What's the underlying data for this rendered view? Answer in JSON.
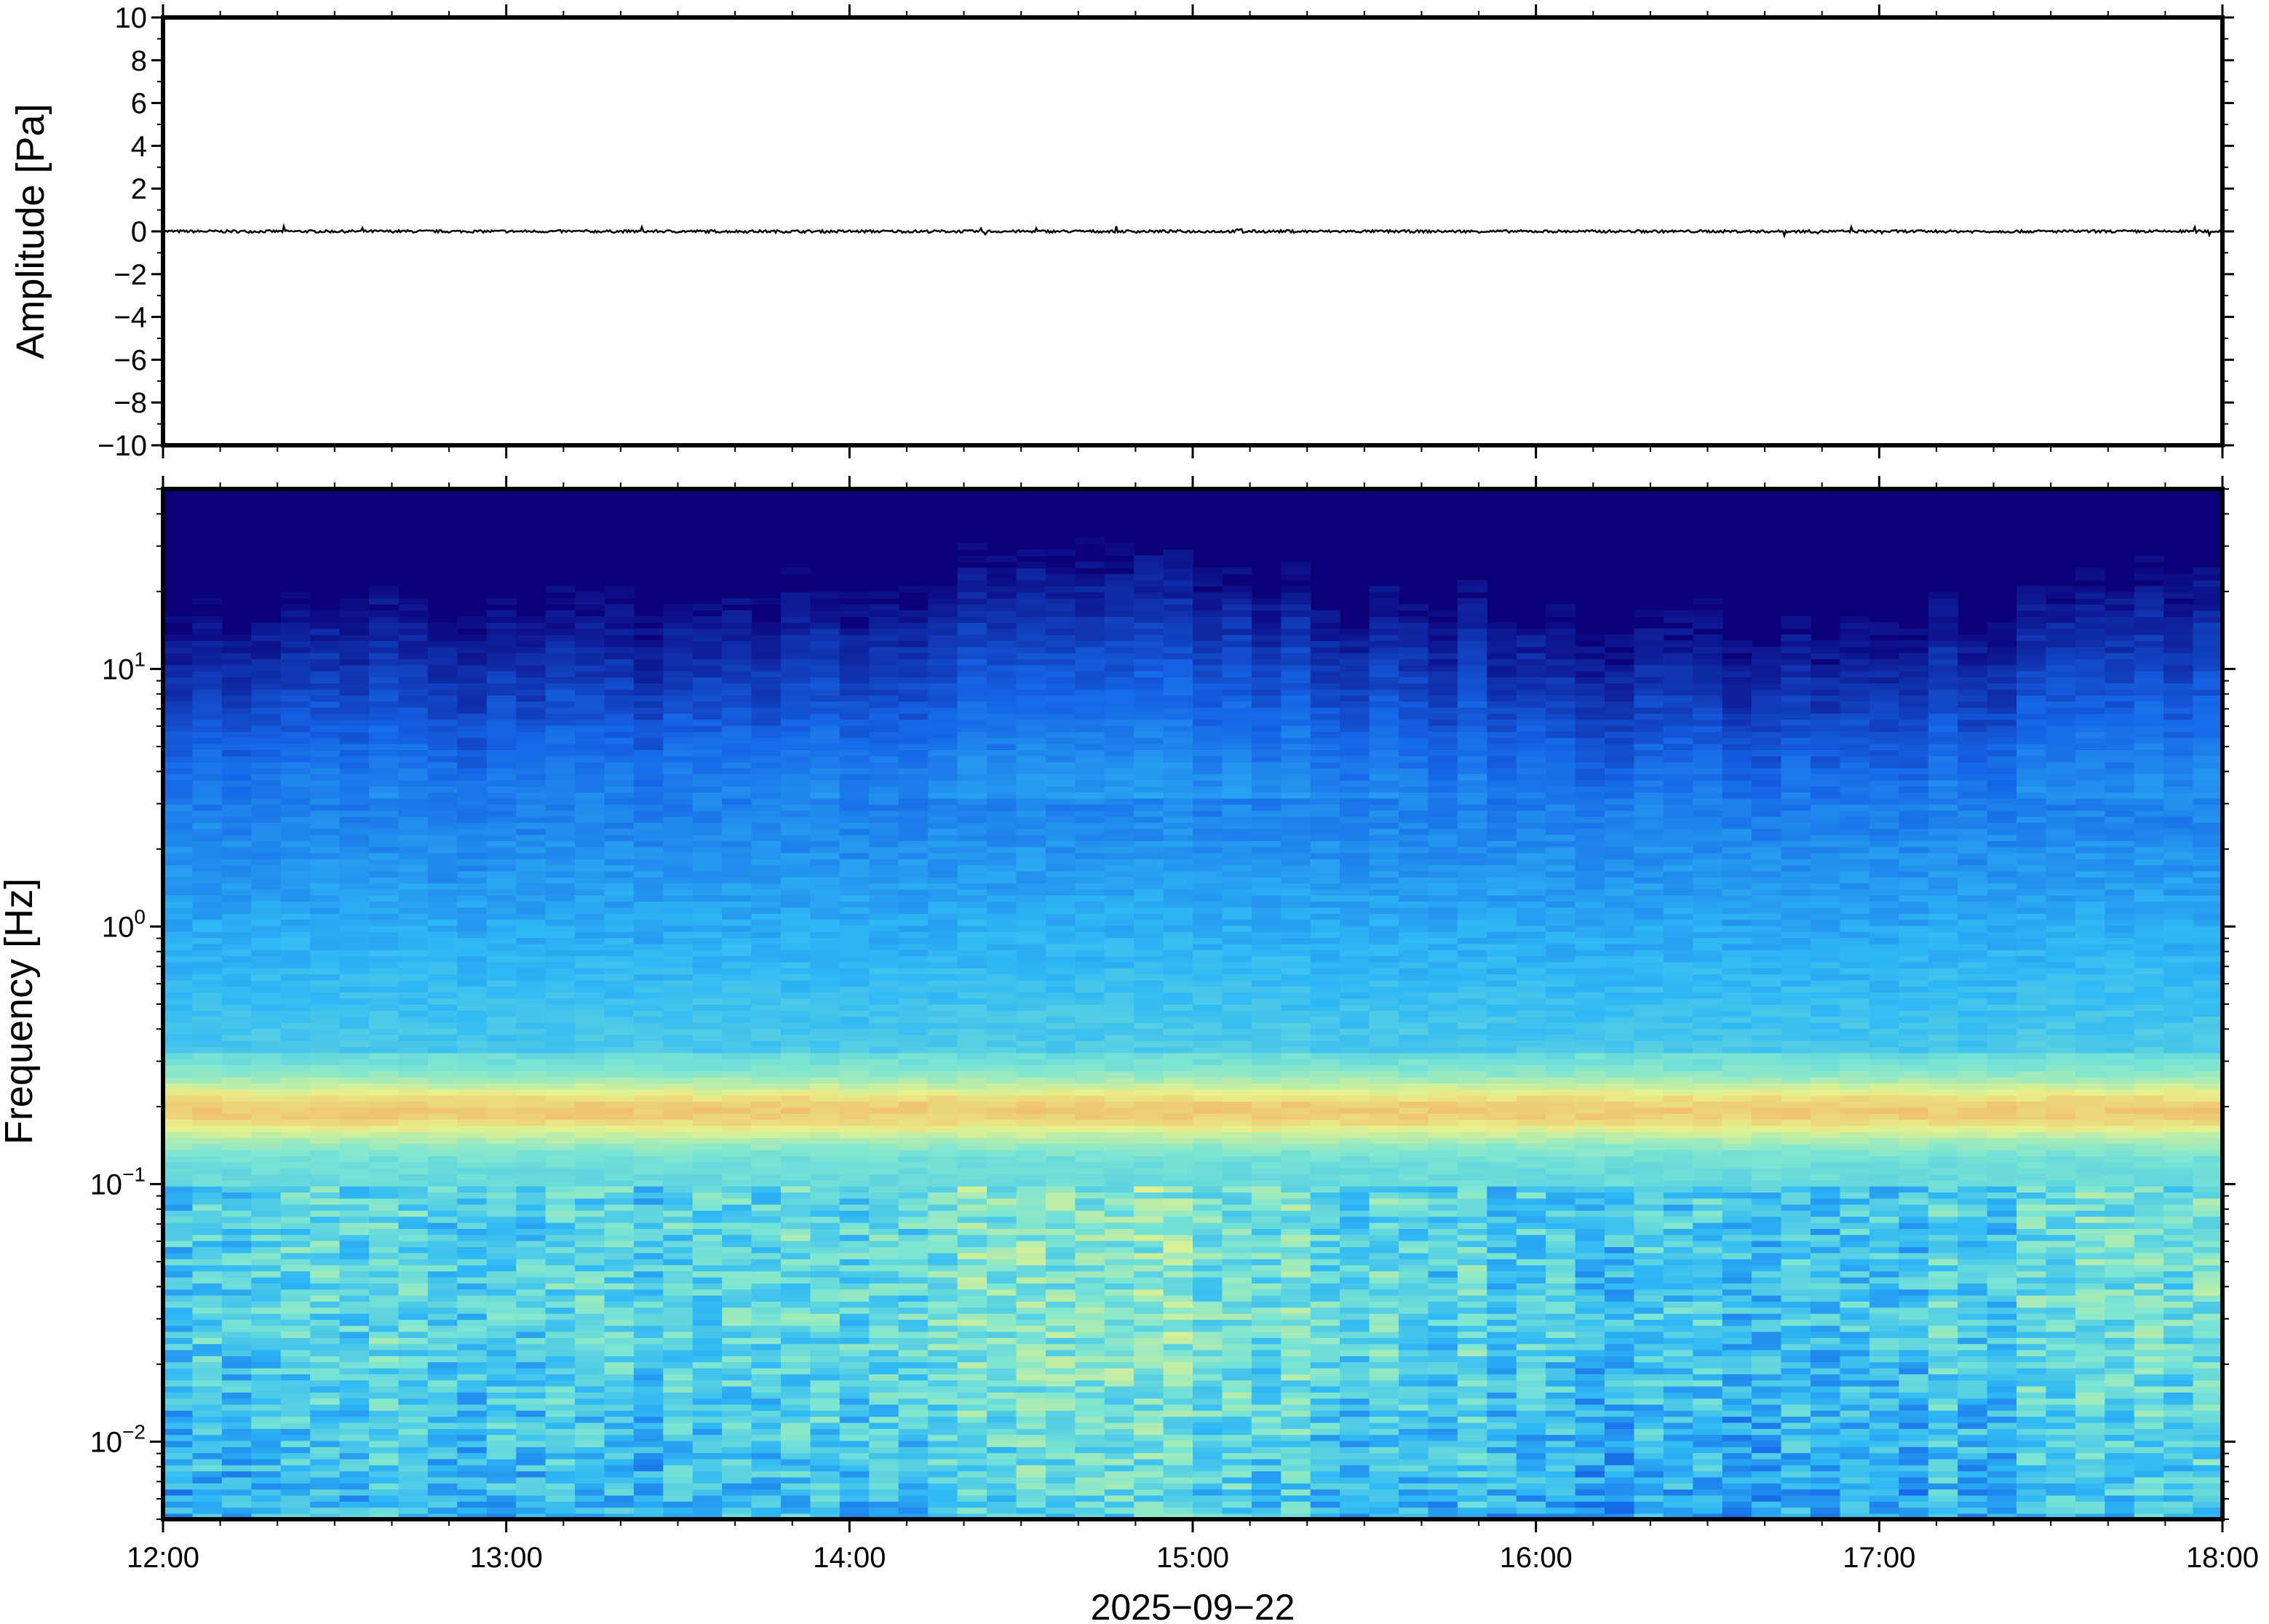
{
  "chart_data": [
    {
      "type": "line",
      "ylabel": "Amplitude [Pa]",
      "ylim": [
        -10,
        10
      ],
      "yticks": [
        10,
        8,
        6,
        4,
        2,
        0,
        -2,
        -4,
        -6,
        -8,
        -10
      ],
      "ytick_labels": [
        "10",
        "8",
        "6",
        "4",
        "2",
        "0",
        "−2",
        "−4",
        "−6",
        "−8",
        "−10"
      ],
      "x_range": [
        "12:00",
        "18:00"
      ],
      "series": [
        {
          "approx_value": 0,
          "peak_abs": 0.3,
          "color": "#000000"
        }
      ]
    },
    {
      "type": "heatmap",
      "ylabel": "Frequency [Hz]",
      "xlabel": "2025−09−22",
      "y_scale": "log",
      "ylim_hz": [
        0.005,
        50
      ],
      "yticks": [
        {
          "value": 0.01,
          "base": "10",
          "exp": "−2"
        },
        {
          "value": 0.1,
          "base": "10",
          "exp": "−1"
        },
        {
          "value": 1,
          "base": "10",
          "exp": "0"
        },
        {
          "value": 10,
          "base": "10",
          "exp": "1"
        }
      ],
      "xticks": [
        "12:00",
        "13:00",
        "14:00",
        "15:00",
        "16:00",
        "17:00",
        "18:00"
      ],
      "colormap": "jet",
      "dominant_band_hz": [
        0.15,
        0.25
      ],
      "colors": {
        "low": "#0b0077",
        "mid_low": "#1565e6",
        "mid": "#2fb8f5",
        "mid_high": "#7de6d2",
        "high": "#e8f28c",
        "peak": "#f4a45a"
      }
    }
  ]
}
